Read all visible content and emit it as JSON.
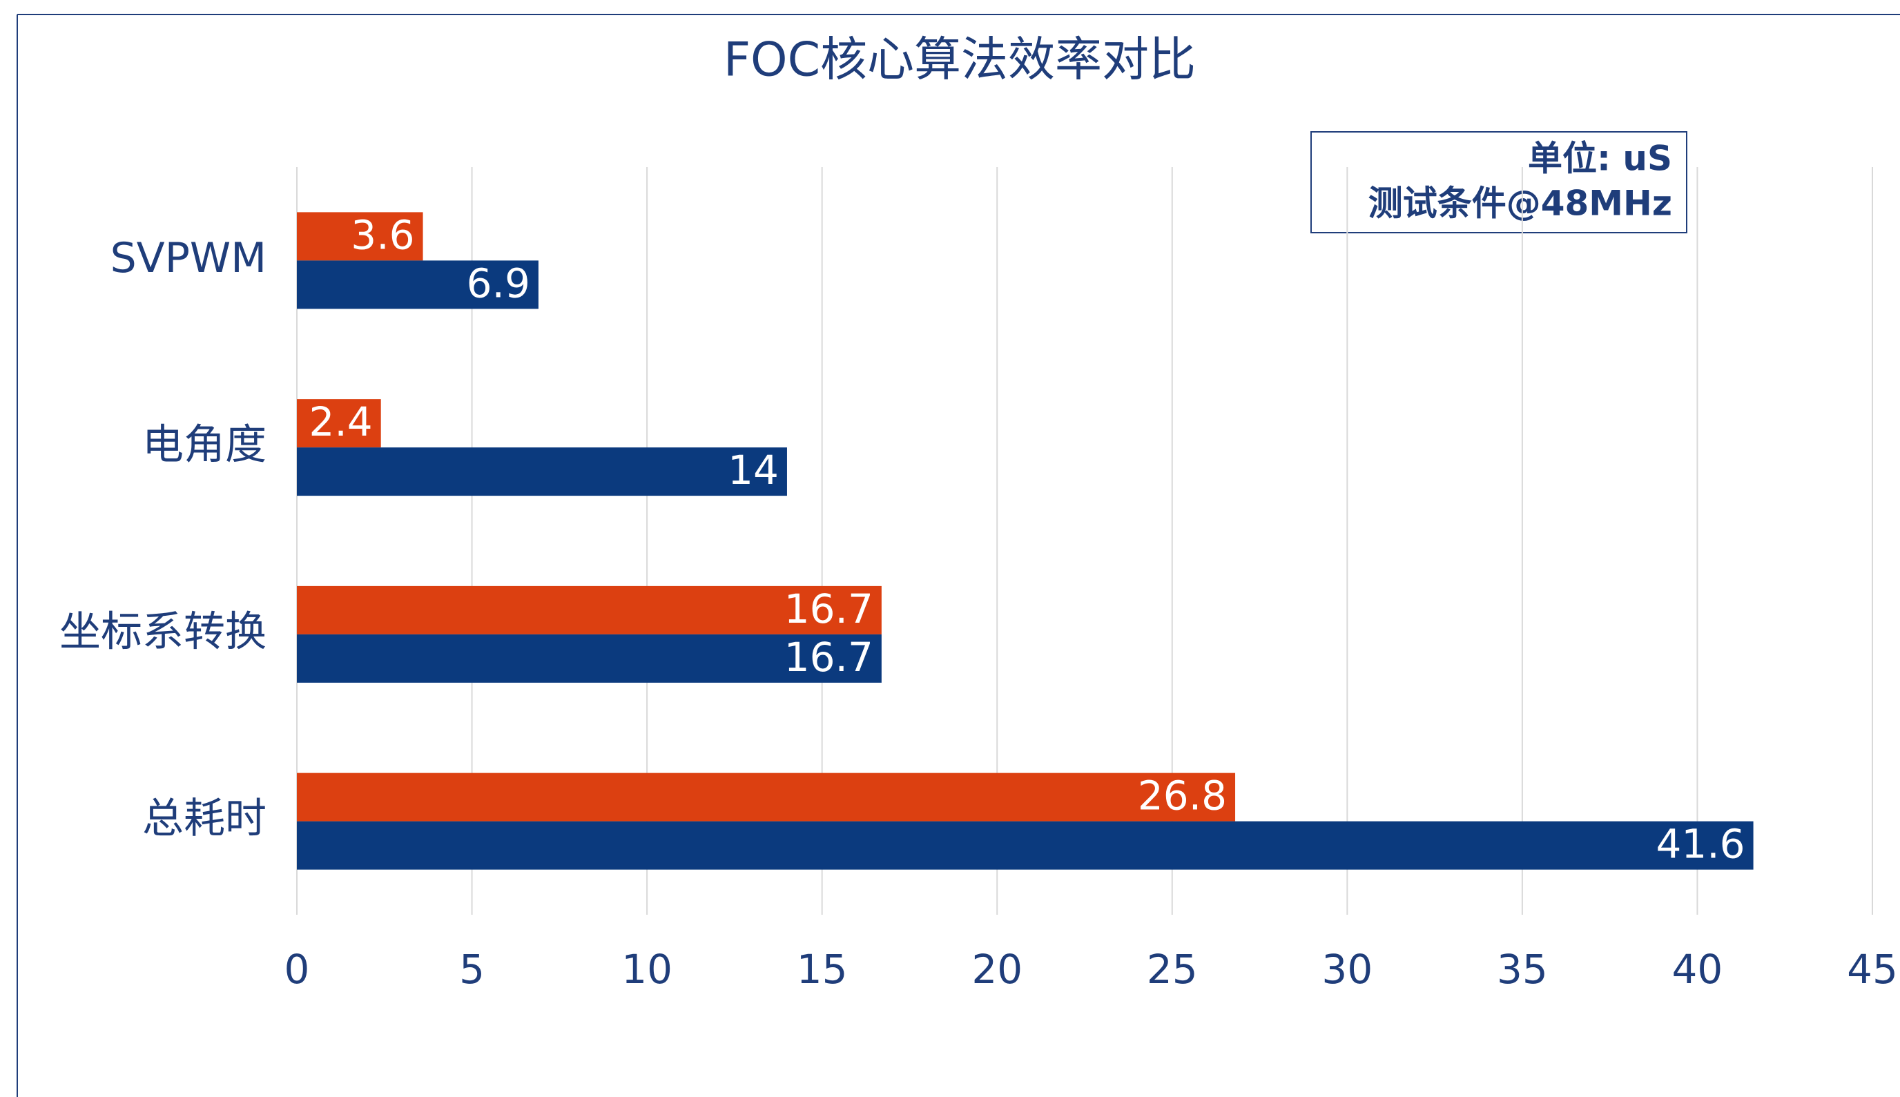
{
  "chart_data": {
    "type": "bar",
    "orientation": "horizontal",
    "title": "FOC核心算法效率对比",
    "annotations": [
      "单位: uS",
      "测试条件@48MHz"
    ],
    "categories": [
      "SVPWM",
      "电角度",
      "坐标系转换",
      "总耗时"
    ],
    "series": [
      {
        "color": "#dc4011",
        "values": [
          3.6,
          2.4,
          16.7,
          26.8
        ]
      },
      {
        "color": "#0b3a7e",
        "values": [
          6.9,
          14,
          16.7,
          41.6
        ]
      }
    ],
    "xlim": [
      0,
      45
    ],
    "xticks": [
      0,
      5,
      10,
      15,
      20,
      25,
      30,
      35,
      40,
      45
    ],
    "grid": true
  }
}
